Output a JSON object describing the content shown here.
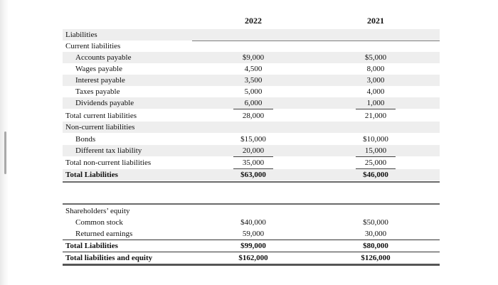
{
  "columns": [
    "2022",
    "2021"
  ],
  "liabilities": {
    "heading": "Liabilities",
    "current_heading": "Current liabilities",
    "current_rows": [
      {
        "label": "Accounts payable",
        "v2022": "$9,000",
        "v2021": "$5,000"
      },
      {
        "label": "Wages payable",
        "v2022": "4,500",
        "v2021": "8,000"
      },
      {
        "label": "Interest payable",
        "v2022": "3,500",
        "v2021": "3,000"
      },
      {
        "label": "Taxes payable",
        "v2022": "5,000",
        "v2021": "4,000"
      },
      {
        "label": "Dividends payable",
        "v2022": "6,000",
        "v2021": "1,000"
      }
    ],
    "total_current": {
      "label": "Total current liabilities",
      "v2022": "28,000",
      "v2021": "21,000"
    },
    "noncurrent_heading": "Non-current liabilities",
    "noncurrent_rows": [
      {
        "label": "Bonds",
        "v2022": "$15,000",
        "v2021": "$10,000"
      },
      {
        "label": "Different tax liability",
        "v2022": "20,000",
        "v2021": "15,000"
      }
    ],
    "total_noncurrent": {
      "label": "Total non-current liabilities",
      "v2022": "35,000",
      "v2021": "25,000"
    },
    "total": {
      "label": "Total Liabilities",
      "v2022": "$63,000",
      "v2021": "$46,000"
    }
  },
  "equity": {
    "heading": "Shareholders’ equity",
    "rows": [
      {
        "label": "Common stock",
        "v2022": "$40,000",
        "v2021": "$50,000"
      },
      {
        "label": "Returned earnings",
        "v2022": "59,000",
        "v2021": "30,000"
      }
    ],
    "total": {
      "label": "Total Liabilities",
      "v2022": "$99,000",
      "v2021": "$80,000"
    },
    "grand_total": {
      "label": "Total liabilities and equity",
      "v2022": "$162,000",
      "v2021": "$126,000"
    }
  }
}
